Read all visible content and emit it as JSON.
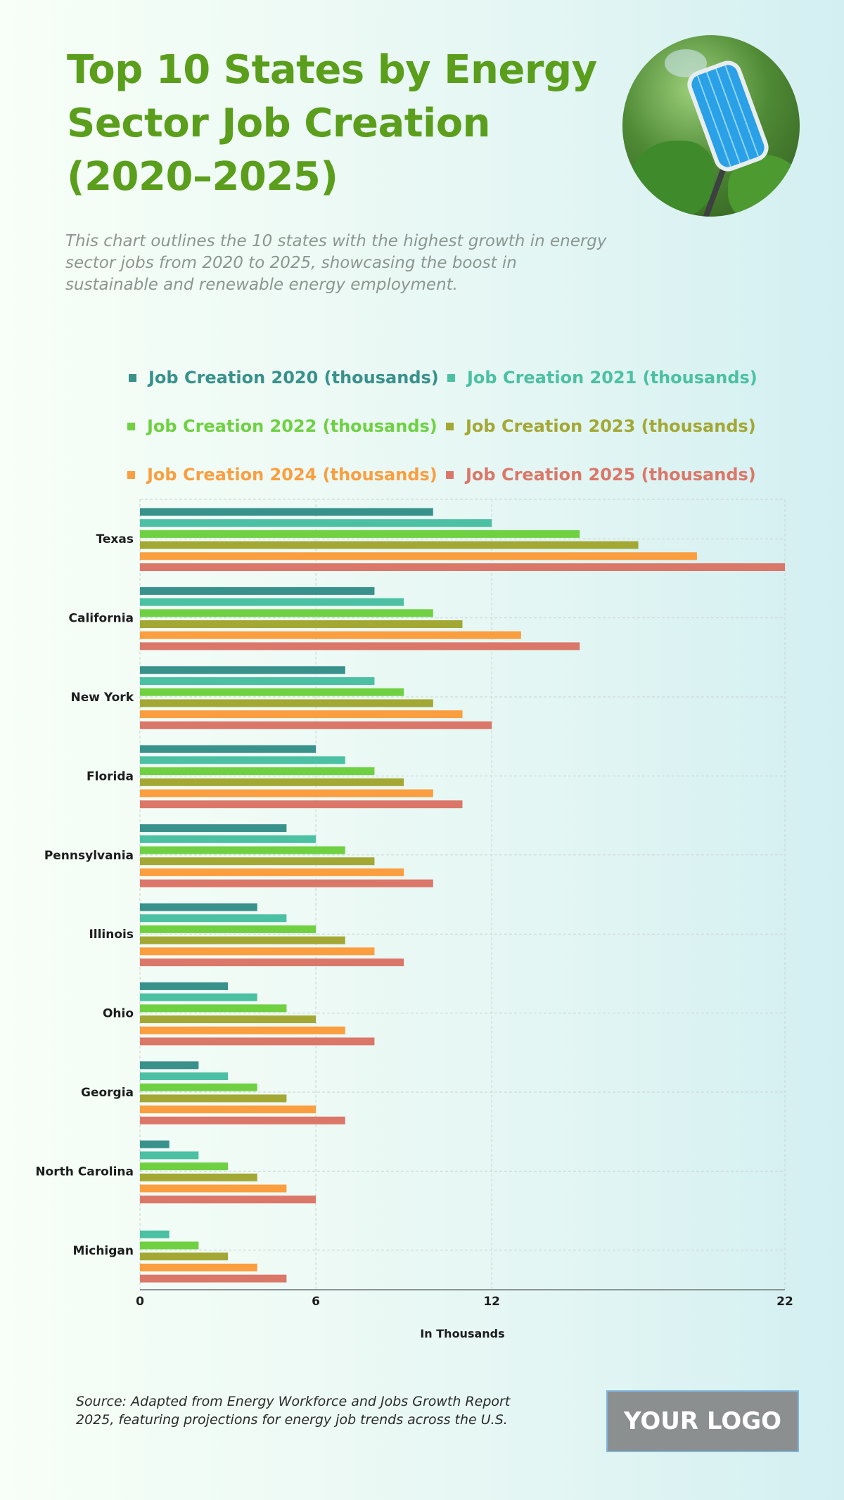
{
  "header": {
    "title": "Top 10 States by Energy Sector Job Creation (2020–2025)",
    "subtitle": "This chart outlines the 10 states with the highest growth in energy sector jobs from 2020 to 2025, showcasing the boost in sustainable and renewable energy employment."
  },
  "image": {
    "description": "solar-panel-street-light-in-forest"
  },
  "footer": {
    "source": "Source: Adapted from Energy Workforce and Jobs Growth Report 2025, featuring projections for energy job trends across the U.S.",
    "logo_text": "YOUR LOGO"
  },
  "chart_data": {
    "type": "bar",
    "orientation": "horizontal",
    "title": "Top 10 States by Energy Sector Job Creation (2020–2025)",
    "xlabel": "In Thousands",
    "ylabel": "",
    "xlim": [
      0,
      22
    ],
    "x_ticks": [
      "0",
      "6",
      "12",
      "22"
    ],
    "x_tick_values": [
      0,
      6,
      12,
      22
    ],
    "grid": true,
    "legend_position": "top",
    "categories": [
      "Texas",
      "California",
      "New York",
      "Florida",
      "Pennsylvania",
      "Illinois",
      "Ohio",
      "Georgia",
      "North Carolina",
      "Michigan"
    ],
    "series": [
      {
        "name": "Job Creation 2020 (thousands)",
        "color": "#38918b",
        "values": [
          10,
          8,
          7,
          6,
          5,
          4,
          3,
          2,
          1,
          0
        ]
      },
      {
        "name": "Job Creation 2021 (thousands)",
        "color": "#4cc0a3",
        "values": [
          12,
          9,
          8,
          7,
          6,
          5,
          4,
          3,
          2,
          1
        ]
      },
      {
        "name": "Job Creation 2022 (thousands)",
        "color": "#6fd142",
        "values": [
          15,
          10,
          9,
          8,
          7,
          6,
          5,
          4,
          3,
          2
        ]
      },
      {
        "name": "Job Creation 2023 (thousands)",
        "color": "#a3a834",
        "values": [
          17,
          11,
          10,
          9,
          8,
          7,
          6,
          5,
          4,
          3
        ]
      },
      {
        "name": "Job Creation 2024 (thousands)",
        "color": "#fa9e3f",
        "values": [
          19,
          13,
          11,
          10,
          9,
          8,
          7,
          6,
          5,
          4
        ]
      },
      {
        "name": "Job Creation 2025 (thousands)",
        "color": "#db7769",
        "values": [
          22,
          15,
          12,
          11,
          10,
          9,
          8,
          7,
          6,
          5
        ]
      }
    ]
  }
}
